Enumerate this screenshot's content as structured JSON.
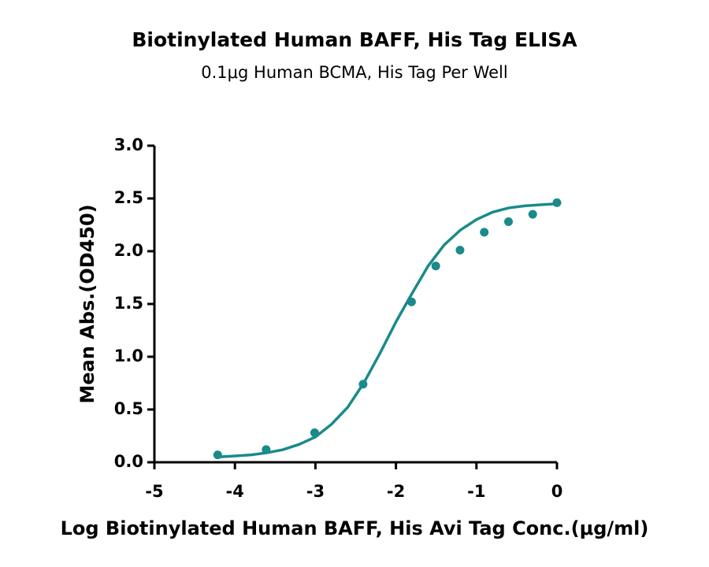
{
  "chart_data": {
    "type": "scatter",
    "title": "Biotinylated Human BAFF, His Tag ELISA",
    "subtitle": "0.1μg Human BCMA, His Tag Per Well",
    "x_label": "Log Biotinylated Human BAFF, His Avi Tag Conc.(μg/ml)",
    "y_label": "Mean Abs.(OD450)",
    "color": "#1a8a8a",
    "x": [
      -4.214,
      -3.612,
      -3.01,
      -2.408,
      -1.806,
      -1.505,
      -1.204,
      -0.903,
      -0.602,
      -0.301,
      0
    ],
    "values": [
      0.07,
      0.12,
      0.28,
      0.74,
      1.52,
      1.86,
      2.01,
      2.18,
      2.28,
      2.35,
      2.46
    ],
    "fit": {
      "x": [
        -4.2,
        -4.0,
        -3.8,
        -3.6,
        -3.4,
        -3.2,
        -3.0,
        -2.8,
        -2.6,
        -2.4,
        -2.2,
        -2.0,
        -1.8,
        -1.6,
        -1.4,
        -1.2,
        -1.0,
        -0.8,
        -0.6,
        -0.4,
        -0.2,
        0
      ],
      "values": [
        0.05,
        0.06,
        0.07,
        0.09,
        0.12,
        0.17,
        0.24,
        0.36,
        0.52,
        0.75,
        1.03,
        1.33,
        1.6,
        1.86,
        2.06,
        2.2,
        2.3,
        2.37,
        2.41,
        2.43,
        2.44,
        2.45
      ]
    },
    "xlim": [
      -5,
      0
    ],
    "xticks": [
      -5,
      -4,
      -3,
      -2,
      -1,
      0
    ],
    "ylim": [
      0,
      3
    ],
    "yticks": [
      {
        "value": 0,
        "label": "0.0"
      },
      {
        "value": 0.5,
        "label": "0.5"
      },
      {
        "value": 1,
        "label": "1.0"
      },
      {
        "value": 1.5,
        "label": "1.5"
      },
      {
        "value": 2,
        "label": "2.0"
      },
      {
        "value": 2.5,
        "label": "2.5"
      },
      {
        "value": 3,
        "label": "3.0"
      }
    ]
  }
}
